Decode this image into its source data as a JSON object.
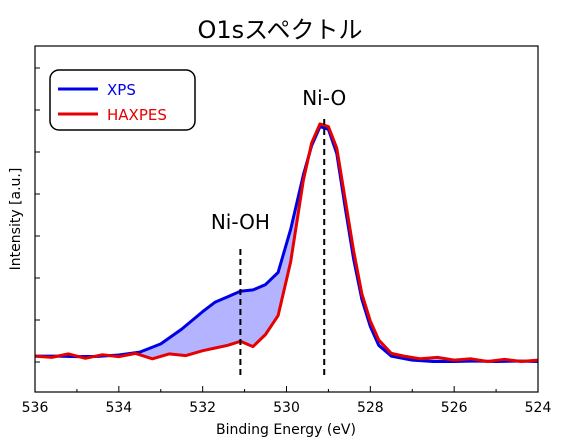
{
  "chart_data": {
    "type": "line",
    "title": "O1sスペクトル",
    "xlabel": "Binding Energy (eV)",
    "ylabel": "Intensity [a.u.]",
    "xlim": [
      536,
      524
    ],
    "ylim": [
      0,
      1
    ],
    "x_reversed": true,
    "y_tick_labels_shown": false,
    "grid": false,
    "legend_position": "top-left",
    "x_ticks": [
      536,
      534,
      532,
      530,
      528,
      526,
      524
    ],
    "x_tick_labels": [
      "536",
      "534",
      "532",
      "530",
      "528",
      "526",
      "524"
    ],
    "shaded_region": {
      "between": [
        "XPS",
        "HAXPES"
      ],
      "color": "#b3b3ff"
    },
    "annotations": [
      {
        "text": "Ni-O",
        "x": 529.1,
        "line_y": [
          0.0,
          0.95
        ],
        "text_y": 1.0
      },
      {
        "text": "Ni-OH",
        "x": 531.1,
        "line_y": [
          0.0,
          0.47
        ],
        "text_y": 0.54
      }
    ],
    "series": [
      {
        "name": "XPS",
        "color": "#0000e6",
        "x": [
          536,
          535.5,
          535,
          534.5,
          534,
          533.5,
          533,
          532.5,
          532,
          531.7,
          531.4,
          531.1,
          530.8,
          530.5,
          530.2,
          529.9,
          529.6,
          529.4,
          529.2,
          529.0,
          528.8,
          528.6,
          528.4,
          528.2,
          528.0,
          527.8,
          527.5,
          527,
          526.5,
          526,
          525.5,
          525,
          524.5,
          524
        ],
        "values": [
          0.07,
          0.07,
          0.068,
          0.069,
          0.074,
          0.085,
          0.115,
          0.17,
          0.235,
          0.27,
          0.29,
          0.31,
          0.315,
          0.335,
          0.38,
          0.54,
          0.74,
          0.85,
          0.92,
          0.91,
          0.82,
          0.62,
          0.43,
          0.28,
          0.18,
          0.11,
          0.07,
          0.055,
          0.05,
          0.05,
          0.052,
          0.05,
          0.052,
          0.05
        ]
      },
      {
        "name": "HAXPES",
        "color": "#e60000",
        "x": [
          536,
          535.6,
          535.2,
          534.8,
          534.4,
          534,
          533.6,
          533.2,
          532.8,
          532.4,
          532,
          531.7,
          531.4,
          531.1,
          530.8,
          530.5,
          530.2,
          529.9,
          529.6,
          529.4,
          529.2,
          529.0,
          528.8,
          528.6,
          528.4,
          528.2,
          528.0,
          527.8,
          527.5,
          527.2,
          526.8,
          526.4,
          526,
          525.6,
          525.2,
          524.8,
          524.4,
          524
        ],
        "values": [
          0.07,
          0.065,
          0.078,
          0.062,
          0.075,
          0.068,
          0.08,
          0.06,
          0.078,
          0.072,
          0.09,
          0.1,
          0.11,
          0.125,
          0.105,
          0.15,
          0.22,
          0.42,
          0.72,
          0.86,
          0.93,
          0.92,
          0.84,
          0.65,
          0.46,
          0.3,
          0.2,
          0.13,
          0.08,
          0.07,
          0.06,
          0.065,
          0.055,
          0.06,
          0.05,
          0.058,
          0.05,
          0.055
        ]
      }
    ]
  }
}
